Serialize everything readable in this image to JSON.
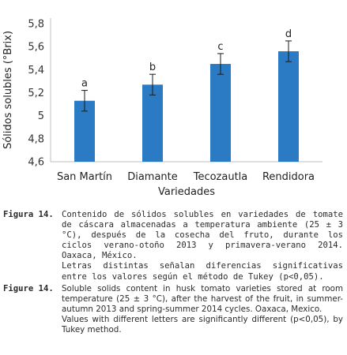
{
  "chart_data": {
    "type": "bar",
    "categories": [
      "San Martín",
      "Diamante",
      "Tecozautla",
      "Rendidora"
    ],
    "values": [
      5.13,
      5.27,
      5.45,
      5.56
    ],
    "errors": [
      0.09,
      0.09,
      0.09,
      0.09
    ],
    "letters": [
      "a",
      "b",
      "c",
      "d"
    ],
    "ylim": [
      4.6,
      5.8
    ],
    "yticks": [
      "4,6",
      "4,8",
      "5",
      "5,2",
      "5,4",
      "5,6",
      "5,8"
    ],
    "ytick_values": [
      4.6,
      4.8,
      5.0,
      5.2,
      5.4,
      5.6,
      5.8
    ],
    "xlabel": "Variedades",
    "ylabel": "Sólidos solubles (°Brix)",
    "bar_color": "#2b7bc4",
    "grid": false
  },
  "captions": {
    "es": {
      "label": "Figura 14.",
      "text": "Contenido de sólidos solubles en variedades de tomate de cáscara almacenadas a temperatura ambiente (25 ± 3 °C), después de la cosecha del fruto, durante los ciclos verano-otoño 2013 y primavera-verano 2014. Oaxaca, México.",
      "note": "Letras distintas señalan diferencias significativas entre los valores según el método de Tukey (p<0,05)."
    },
    "en": {
      "label": "Figure 14.",
      "text": "Soluble solids content in husk tomato varieties stored at room temperature (25 ± 3 °C), after the harvest of the fruit, in summer-autumn 2013 and spring-summer 2014 cycles. Oaxaca, Mexico.",
      "note": "Values with different letters are significantly different (p<0,05), by Tukey method."
    }
  }
}
